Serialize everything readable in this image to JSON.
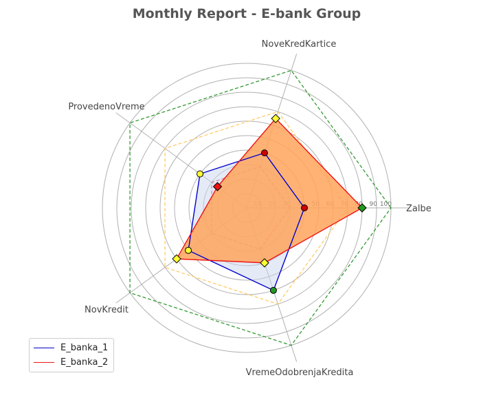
{
  "chart_data": {
    "type": "radar",
    "title": "Monthly Report - E-bank Group",
    "axes": [
      "Zalbe",
      "NoveKredKartice",
      "ProvedenoVreme",
      "NovKredit",
      "VremeOdobrenjaKredita"
    ],
    "radial_ticks": [
      "10",
      "20",
      "30",
      "40",
      "50",
      "60",
      "70",
      "80",
      "90",
      "100"
    ],
    "rlim": [
      0,
      100
    ],
    "grid": true,
    "legend_position": "lower-left",
    "series": [
      {
        "name": "E_banka_1",
        "values": [
          40,
          40,
          40,
          50,
          60
        ],
        "color": "#0000cc",
        "fill": "#c9d6ee",
        "marker_colors": [
          "#cc0000",
          "#cc0000",
          "#ffff33",
          "#ffff33",
          "#229922"
        ]
      },
      {
        "name": "E_banka_2",
        "values": [
          80,
          65,
          25,
          60,
          40
        ],
        "color": "#ee1111",
        "fill": "#ffa45c",
        "marker_colors": [
          "#229922",
          "#ffff33",
          "#ee1111",
          "#ffff33",
          "#ffff33"
        ]
      }
    ],
    "reference_lines": [
      {
        "values": [
          100,
          100,
          100,
          100,
          100
        ],
        "color": "#339933"
      },
      {
        "values": [
          70,
          70,
          70,
          70,
          70
        ],
        "color": "#ffcc66"
      },
      {
        "values": [
          30,
          30,
          30,
          30,
          30
        ],
        "color": "#ee4444"
      }
    ]
  }
}
